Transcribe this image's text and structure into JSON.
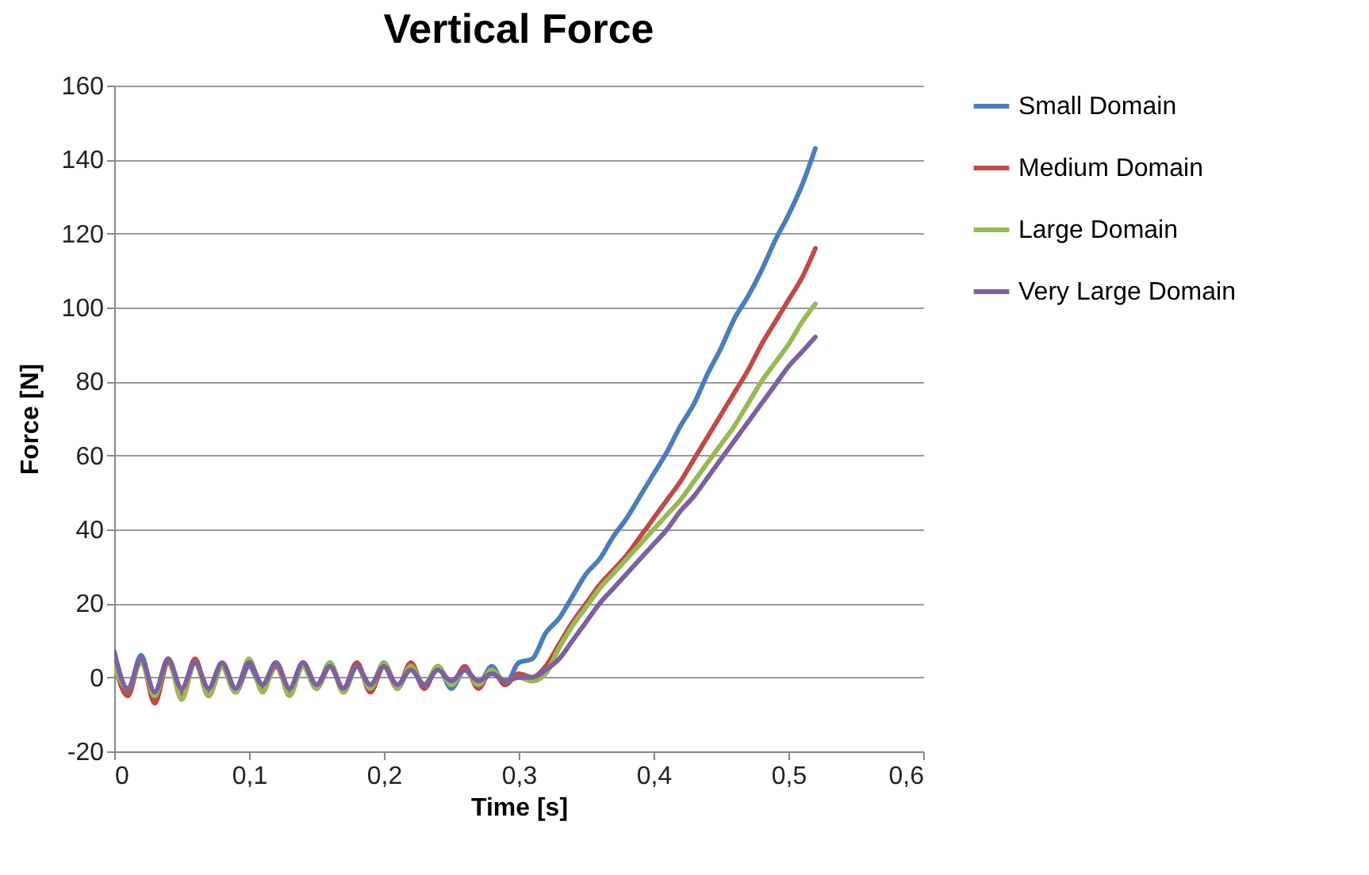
{
  "chart_data": {
    "type": "line",
    "title": "Vertical Force",
    "xlabel": "Time [s]",
    "ylabel": "Force [N]",
    "x": [
      0,
      0.01,
      0.02,
      0.03,
      0.04,
      0.05,
      0.06,
      0.07,
      0.08,
      0.09,
      0.1,
      0.11,
      0.12,
      0.13,
      0.14,
      0.15,
      0.16,
      0.17,
      0.18,
      0.19,
      0.2,
      0.21,
      0.22,
      0.23,
      0.24,
      0.25,
      0.26,
      0.27,
      0.28,
      0.29,
      0.3,
      0.31,
      0.32,
      0.33,
      0.34,
      0.35,
      0.36,
      0.37,
      0.38,
      0.39,
      0.4,
      0.41,
      0.42,
      0.43,
      0.44,
      0.45,
      0.46,
      0.47,
      0.48,
      0.49,
      0.5,
      0.51,
      0.52
    ],
    "series": [
      {
        "name": "Small Domain",
        "color": "#4a7ebb",
        "values": [
          5,
          -4,
          6,
          -6,
          5,
          -5,
          4,
          -4,
          3,
          -4,
          3,
          -3,
          4,
          -4,
          3,
          -3,
          4,
          -4,
          3,
          -3,
          4,
          -3,
          3,
          -3,
          3,
          -3,
          2,
          -2,
          3,
          -2,
          4,
          5,
          12,
          16,
          22,
          28,
          32,
          38,
          43,
          49,
          55,
          61,
          68,
          74,
          82,
          89,
          97,
          103,
          110,
          118,
          125,
          133,
          143
        ]
      },
      {
        "name": "Medium Domain",
        "color": "#be4b48",
        "values": [
          4,
          -5,
          5,
          -7,
          4,
          -4,
          5,
          -5,
          3,
          -4,
          4,
          -3,
          3,
          -4,
          4,
          -3,
          3,
          -3,
          4,
          -4,
          3,
          -3,
          4,
          -3,
          3,
          -2,
          3,
          -3,
          2,
          -2,
          1,
          0,
          3,
          9,
          15,
          20,
          25,
          29,
          33,
          38,
          43,
          48,
          53,
          59,
          65,
          71,
          77,
          83,
          90,
          96,
          102,
          108,
          116
        ]
      },
      {
        "name": "Large Domain",
        "color": "#98b954",
        "values": [
          3,
          -3,
          4,
          -5,
          5,
          -6,
          4,
          -5,
          3,
          -4,
          5,
          -4,
          4,
          -5,
          3,
          -3,
          4,
          -4,
          3,
          -3,
          4,
          -3,
          3,
          -2,
          3,
          -2,
          2,
          -2,
          2,
          -1,
          0,
          -1,
          1,
          8,
          14,
          19,
          24,
          28,
          32,
          36,
          40,
          44,
          48,
          53,
          58,
          63,
          68,
          74,
          80,
          85,
          90,
          96,
          101
        ]
      },
      {
        "name": "Very Large Domain",
        "color": "#7d60a0",
        "values": [
          7,
          -3,
          5,
          -4,
          5,
          -3,
          4,
          -3,
          4,
          -3,
          4,
          -2,
          4,
          -3,
          4,
          -2,
          3,
          -3,
          3,
          -2,
          3,
          -2,
          2,
          -2,
          2,
          -1,
          2,
          -1,
          1,
          -1,
          0,
          0,
          2,
          5,
          10,
          15,
          20,
          24,
          28,
          32,
          36,
          40,
          45,
          49,
          54,
          59,
          64,
          69,
          74,
          79,
          84,
          88,
          92
        ]
      }
    ],
    "xlim": [
      0,
      0.6
    ],
    "xticks": [
      0,
      {
        "value": 0.1,
        "label": "0,1"
      },
      {
        "value": 0.2,
        "label": "0,2"
      },
      {
        "value": 0.3,
        "label": "0,3"
      },
      {
        "value": 0.4,
        "label": "0,4"
      },
      {
        "value": 0.5,
        "label": "0,5"
      },
      {
        "value": 0.6,
        "label": "0,6"
      }
    ],
    "ylim": [
      -20,
      160
    ],
    "yticks": [
      -20,
      0,
      20,
      40,
      60,
      80,
      100,
      120,
      140,
      160
    ],
    "grid": "y",
    "legend": "right",
    "line_style": "solid"
  }
}
